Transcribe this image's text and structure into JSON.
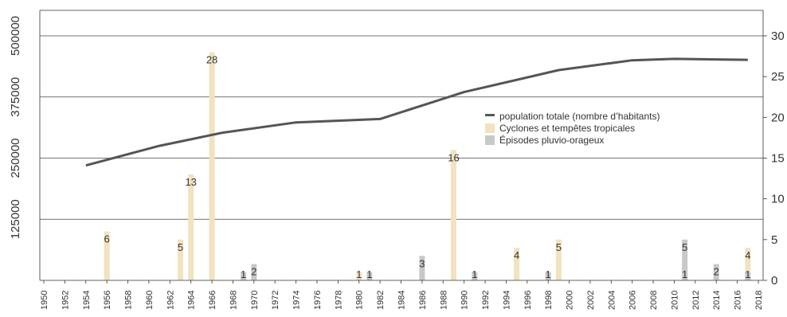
{
  "chart_data": {
    "type": "bar+line",
    "title": "",
    "xlabel": "",
    "ylabel": "",
    "x_ticks": [
      1950,
      1952,
      1954,
      1956,
      1958,
      1960,
      1962,
      1964,
      1966,
      1968,
      1970,
      1972,
      1974,
      1976,
      1978,
      1980,
      1982,
      1984,
      1986,
      1988,
      1990,
      1992,
      1994,
      1996,
      1998,
      2000,
      2002,
      2004,
      2006,
      2008,
      2010,
      2012,
      2014,
      2016,
      2018
    ],
    "xlim": [
      1950,
      2018
    ],
    "left_axis": {
      "ticks": [
        0,
        125000,
        250000,
        375000,
        500000
      ],
      "tick_labels": [
        "125000",
        "250000",
        "375000",
        "500000"
      ],
      "ylim": [
        0,
        500000
      ]
    },
    "right_axis": {
      "ticks": [
        0,
        5,
        10,
        15,
        20,
        25,
        30
      ],
      "tick_labels": [
        "0",
        "5",
        "10",
        "15",
        "20",
        "25",
        "30"
      ],
      "ylim": [
        0,
        30
      ]
    },
    "grid": "horizontal at left-axis ticks",
    "legend": {
      "placement": "center-right",
      "entries": [
        {
          "label": "population totale (nombre d’habitants)",
          "color": "#555555",
          "kind": "line"
        },
        {
          "label": "Cyclones et tempêtes tropicales",
          "color": "#f1e2c0",
          "kind": "bar"
        },
        {
          "label": "Épisodes pluvio-orageux",
          "color": "#c8c8c8",
          "kind": "bar"
        }
      ]
    },
    "series": [
      {
        "name": "population totale (nombre d’habitants)",
        "axis": "left",
        "kind": "line",
        "color": "#555555",
        "points": [
          {
            "x": 1954,
            "y": 235000
          },
          {
            "x": 1961,
            "y": 275000
          },
          {
            "x": 1967,
            "y": 302000
          },
          {
            "x": 1974,
            "y": 323000
          },
          {
            "x": 1982,
            "y": 330000
          },
          {
            "x": 1990,
            "y": 385000
          },
          {
            "x": 1999,
            "y": 430000
          },
          {
            "x": 2006,
            "y": 450000
          },
          {
            "x": 2010,
            "y": 453000
          },
          {
            "x": 2017,
            "y": 451000
          }
        ]
      },
      {
        "name": "Cyclones et tempêtes tropicales",
        "axis": "right",
        "kind": "bar",
        "color": "#f1e2c0",
        "points": [
          {
            "x": 1956,
            "y": 6
          },
          {
            "x": 1963,
            "y": 5
          },
          {
            "x": 1964,
            "y": 13
          },
          {
            "x": 1966,
            "y": 28
          },
          {
            "x": 1980,
            "y": 1
          },
          {
            "x": 1989,
            "y": 16
          },
          {
            "x": 1995,
            "y": 4
          },
          {
            "x": 1999,
            "y": 5
          },
          {
            "x": 2011,
            "y": 1
          },
          {
            "x": 2017,
            "y": 4
          }
        ]
      },
      {
        "name": "Épisodes pluvio-orageux",
        "axis": "right",
        "kind": "bar",
        "color": "#c8c8c8",
        "points": [
          {
            "x": 1969,
            "y": 1
          },
          {
            "x": 1970,
            "y": 2
          },
          {
            "x": 1981,
            "y": 1
          },
          {
            "x": 1986,
            "y": 3
          },
          {
            "x": 1991,
            "y": 1
          },
          {
            "x": 1998,
            "y": 1
          },
          {
            "x": 2011,
            "y": 5
          },
          {
            "x": 2014,
            "y": 2
          },
          {
            "x": 2017,
            "y": 1
          }
        ]
      }
    ]
  }
}
